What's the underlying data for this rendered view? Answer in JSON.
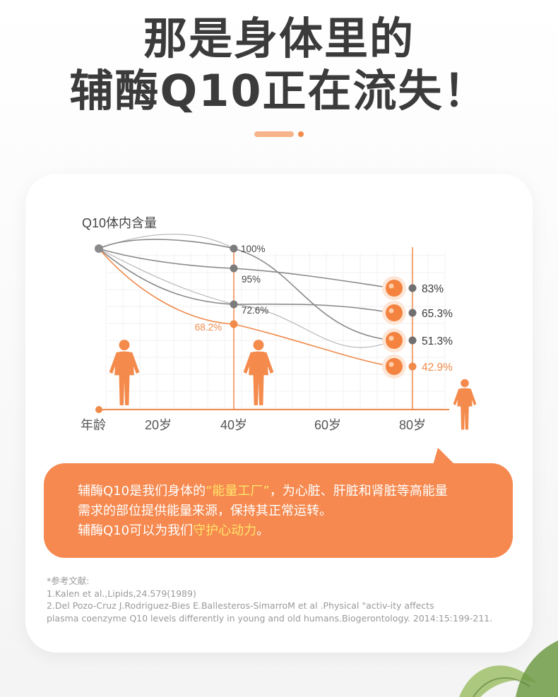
{
  "headline": {
    "line1": "那是身体里的",
    "line2": "辅酶Q10正在流失！"
  },
  "colors": {
    "accent": "#f5894f",
    "accent_line": "#f08a4b",
    "gray_line": "#8a8a8a",
    "highlight": "#ffe46b"
  },
  "chart_data": {
    "type": "line",
    "ylabel": "Q10体内含量",
    "xlabel": "年龄",
    "x_ticks": [
      "20岁",
      "40岁",
      "60岁",
      "80岁"
    ],
    "x_tick_values": [
      20,
      40,
      60,
      80
    ],
    "xlim": [
      0,
      90
    ],
    "ylim": [
      30,
      110
    ],
    "grid": true,
    "series": [
      {
        "organ_icon": "liver-icon",
        "points": [
          {
            "x": 0,
            "y": 100
          },
          {
            "x": 30,
            "y": 95,
            "label": "95%"
          },
          {
            "x": 80,
            "y": 83,
            "label": "83%"
          }
        ]
      },
      {
        "organ_icon": "lung-icon",
        "points": [
          {
            "x": 0,
            "y": 100
          },
          {
            "x": 30,
            "y": 72.6,
            "label": "72.6%"
          },
          {
            "x": 80,
            "y": 65.3,
            "label": "65.3%"
          }
        ]
      },
      {
        "organ_icon": "kidney-icon",
        "points": [
          {
            "x": 0,
            "y": 100
          },
          {
            "x": 30,
            "y": 100,
            "label": "100%"
          },
          {
            "x": 80,
            "y": 51.3,
            "label": "51.3%"
          }
        ]
      },
      {
        "organ_icon": "heart-icon",
        "highlight": true,
        "points": [
          {
            "x": 0,
            "y": 100
          },
          {
            "x": 30,
            "y": 68.2,
            "label": "68.2%"
          },
          {
            "x": 80,
            "y": 42.9,
            "label": "42.9%"
          }
        ]
      }
    ]
  },
  "callout": {
    "p1_before": "辅酶Q10是我们身体的",
    "p1_highlight": "“能量工厂”",
    "p1_after": "，为心脏、肝脏和肾脏等高能量",
    "p2": "需求的部位提供能量来源，保持其正常运转。",
    "p3_before": "辅酶Q10可以为我们",
    "p3_highlight": "守护心动力",
    "p3_after": "。"
  },
  "references": {
    "heading": "*参考文献:",
    "items": [
      "1.Kalen et al.,Lipids,24.579(1989)",
      "2.Del Pozo-Cruz J.Rodriguez-Bies E.Ballesteros-SimarroM et al .Physical \"activ-ity affects",
      "plasma coenzyme Q10 levels differently in young and old humans.Biogerontology. 2014:15:199-211."
    ]
  }
}
